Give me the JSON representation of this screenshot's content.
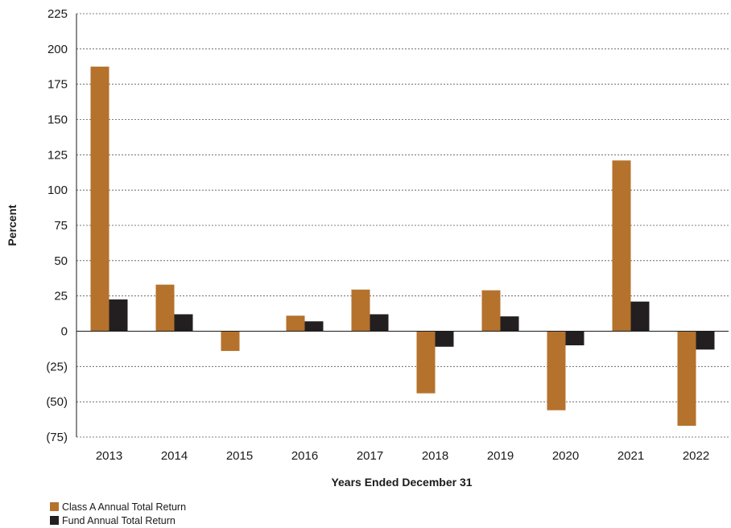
{
  "chart_data": {
    "type": "bar",
    "title": "",
    "xlabel": "Years Ended December 31",
    "ylabel": "Percent",
    "categories": [
      "2013",
      "2014",
      "2015",
      "2016",
      "2017",
      "2018",
      "2019",
      "2020",
      "2021",
      "2022"
    ],
    "series": [
      {
        "name": "Class A Annual Total Return",
        "color": "#b5722c",
        "values": [
          187.5,
          33,
          -14,
          11,
          29.5,
          -44,
          29,
          -56,
          121,
          -67
        ]
      },
      {
        "name": "Fund Annual Total Return",
        "color": "#231f20",
        "values": [
          22.5,
          12,
          0,
          7,
          12,
          -11,
          10.5,
          -10,
          21,
          -13
        ]
      }
    ],
    "ylim": [
      -75,
      225
    ],
    "yticks": [
      225,
      200,
      175,
      150,
      125,
      100,
      75,
      50,
      25,
      0,
      -25,
      -50,
      -75
    ],
    "ytick_labels": [
      "225",
      "200",
      "175",
      "150",
      "125",
      "100",
      "75",
      "50",
      "25",
      "0",
      "(25)",
      "(50)",
      "(75)"
    ],
    "grid": true,
    "legend_position": "bottom-left"
  }
}
